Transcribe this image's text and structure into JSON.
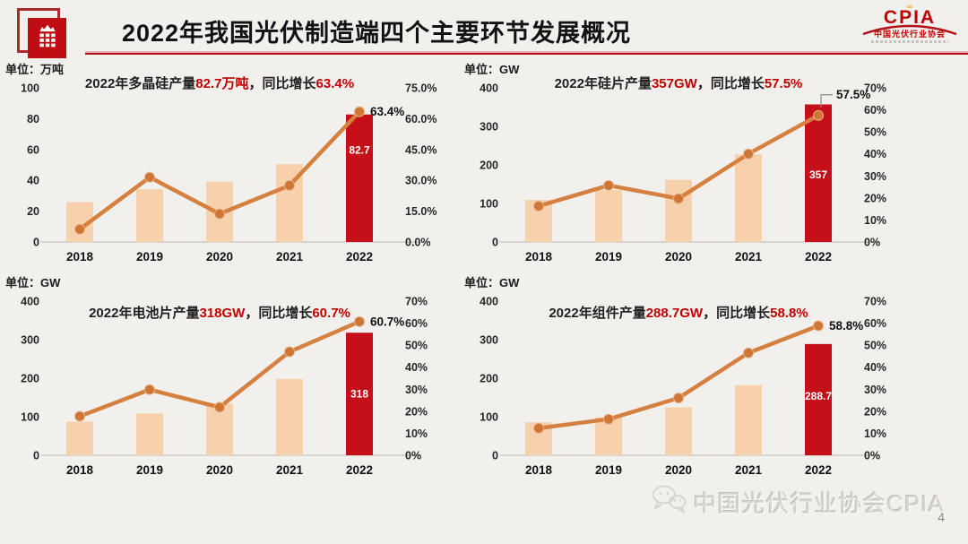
{
  "header": {
    "title": "2022年我国光伏制造端四个主要环节发展概况",
    "cpia_logo": {
      "acronym": "CPIA",
      "subtitle": "中国光伏行业协会"
    }
  },
  "footer": {
    "watermark": "中国光伏行业协会CPIA",
    "page_number": "4"
  },
  "colors": {
    "accent_red": "#c00000",
    "bar_red": "#c5101a",
    "bar_peach": "#f7d0ac",
    "line_orange": "#d5803f",
    "marker_orange": "#cf7636",
    "title_black": "#1f1f1f"
  },
  "chart_data": [
    {
      "type": "bar+line",
      "name": "polysilicon",
      "unit": "单位：万吨",
      "title_parts": {
        "pre": "2022年多晶硅产量",
        "value": "82.7万吨",
        "mid": "，同比增长",
        "growth": "63.4%"
      },
      "categories": [
        "2018",
        "2019",
        "2020",
        "2021",
        "2022"
      ],
      "series": [
        {
          "name": "产量(万吨)",
          "type": "bar",
          "values": [
            25.9,
            34.2,
            39.2,
            50.5,
            82.7
          ]
        },
        {
          "name": "同比增长(%)",
          "type": "line",
          "values": [
            6.2,
            31.5,
            13.7,
            27.5,
            63.4
          ]
        }
      ],
      "bar_value_label": "82.7",
      "line_end_label": "63.4%",
      "left_axis": {
        "max": 100,
        "ticks": [
          "100",
          "80",
          "60",
          "40",
          "20",
          "0"
        ]
      },
      "right_axis": {
        "max": 75,
        "ticks": [
          "75.0%",
          "60.0%",
          "45.0%",
          "30.0%",
          "15.0%",
          "0.0%"
        ]
      },
      "legend": "none",
      "grid": "off"
    },
    {
      "type": "bar+line",
      "name": "wafer",
      "unit": "单位：GW",
      "title_parts": {
        "pre": "2022年硅片产量",
        "value": "357GW",
        "mid": "，同比增长",
        "growth": "57.5%"
      },
      "categories": [
        "2018",
        "2019",
        "2020",
        "2021",
        "2022"
      ],
      "series": [
        {
          "name": "产量(GW)",
          "type": "bar",
          "values": [
            109.2,
            134.6,
            161.3,
            227,
            357
          ]
        },
        {
          "name": "同比增长(%)",
          "type": "line",
          "values": [
            16.3,
            25.7,
            19.7,
            40,
            57.5
          ]
        }
      ],
      "bar_value_label": "357",
      "line_end_label": "57.5%",
      "left_axis": {
        "max": 400,
        "ticks": [
          "400",
          "300",
          "200",
          "100",
          "0"
        ]
      },
      "right_axis": {
        "max": 70,
        "ticks": [
          "70%",
          "60%",
          "50%",
          "40%",
          "30%",
          "20%",
          "10%",
          "0%"
        ]
      },
      "legend": "none",
      "grid": "off"
    },
    {
      "type": "bar+line",
      "name": "cell",
      "unit": "单位：GW",
      "title_parts": {
        "pre": "2022年电池片产量",
        "value": "318GW",
        "mid": "，同比增长",
        "growth": "60.7%"
      },
      "categories": [
        "2018",
        "2019",
        "2020",
        "2021",
        "2022"
      ],
      "series": [
        {
          "name": "产量(GW)",
          "type": "bar",
          "values": [
            87.2,
            108.6,
            134.8,
            198,
            318
          ]
        },
        {
          "name": "同比增长(%)",
          "type": "line",
          "values": [
            17.7,
            29.8,
            21.8,
            47,
            60.7
          ]
        }
      ],
      "bar_value_label": "318",
      "line_end_label": "60.7%",
      "left_axis": {
        "max": 400,
        "ticks": [
          "400",
          "300",
          "200",
          "100",
          "0"
        ]
      },
      "right_axis": {
        "max": 70,
        "ticks": [
          "70%",
          "60%",
          "50%",
          "40%",
          "30%",
          "20%",
          "10%",
          "0%"
        ]
      },
      "legend": "none",
      "grid": "off"
    },
    {
      "type": "bar+line",
      "name": "module",
      "unit": "单位：GW",
      "title_parts": {
        "pre": "2022年组件产量",
        "value": "288.7GW",
        "mid": "，同比增长",
        "growth": "58.8%"
      },
      "categories": [
        "2018",
        "2019",
        "2020",
        "2021",
        "2022"
      ],
      "series": [
        {
          "name": "产量(GW)",
          "type": "bar",
          "values": [
            85.7,
            98.6,
            124.6,
            182,
            288.7
          ]
        },
        {
          "name": "同比增长(%)",
          "type": "line",
          "values": [
            12.3,
            16.4,
            26,
            46.5,
            58.8
          ]
        }
      ],
      "bar_value_label": "288.7",
      "line_end_label": "58.8%",
      "left_axis": {
        "max": 400,
        "ticks": [
          "400",
          "300",
          "200",
          "100",
          "0"
        ]
      },
      "right_axis": {
        "max": 70,
        "ticks": [
          "70%",
          "60%",
          "50%",
          "40%",
          "30%",
          "20%",
          "10%",
          "0%"
        ]
      },
      "legend": "none",
      "grid": "off"
    }
  ]
}
